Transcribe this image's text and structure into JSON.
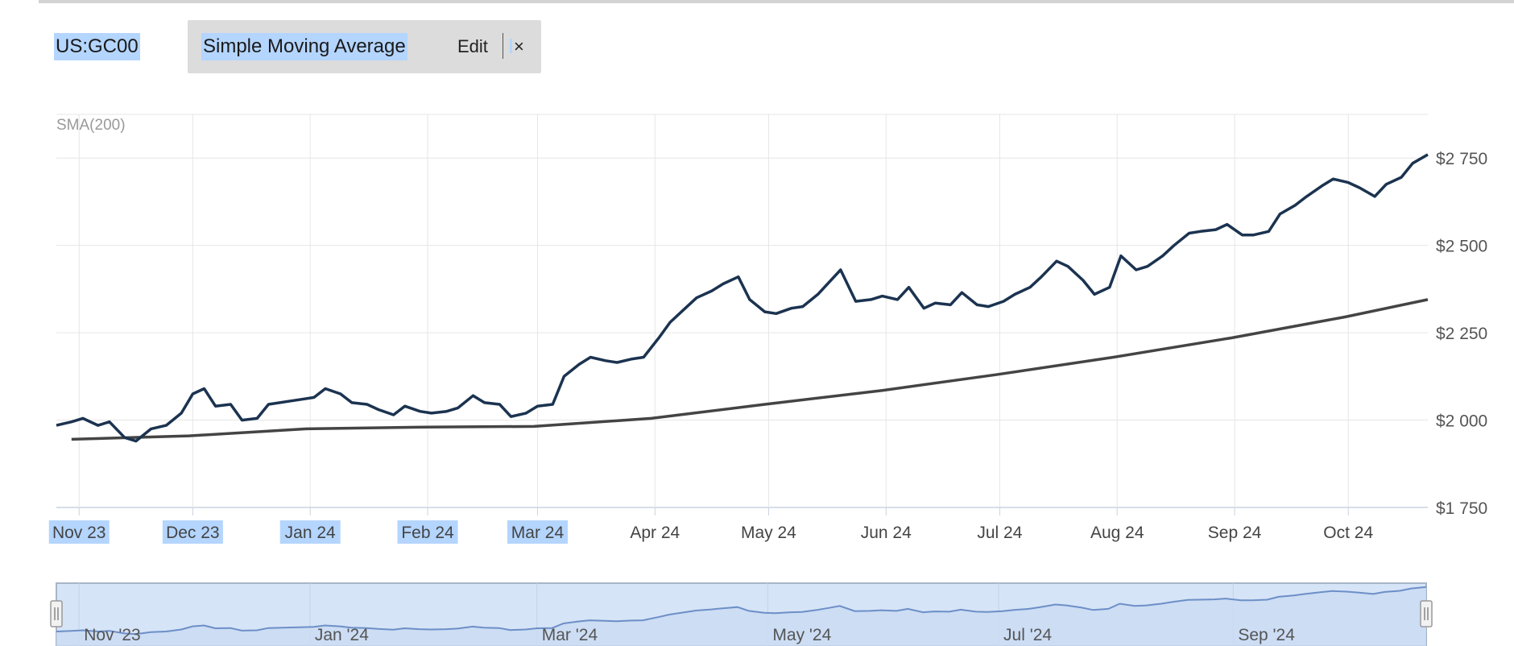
{
  "header": {
    "symbol": "US:GC00",
    "indicator_name": "Simple Moving Average",
    "edit_label": "Edit",
    "close_label": "×"
  },
  "colors": {
    "price_line": "#1b3350",
    "sma_line": "#444444",
    "grid": "#e6e6e6",
    "axis_text": "#555555",
    "navigator_fill": "#d6e4f7",
    "navigator_line": "#6d8fc7",
    "selection_highlight": "#b4d5fe"
  },
  "chart_data": {
    "type": "line",
    "title": "",
    "indicator_label": "SMA(200)",
    "xlabel": "",
    "ylabel": "",
    "x_range": [
      "2023-10-26",
      "2024-10-22"
    ],
    "ylim": [
      1750,
      2875
    ],
    "y_ticks": [
      {
        "value": 1750,
        "label": "$1 750"
      },
      {
        "value": 2000,
        "label": "$2 000"
      },
      {
        "value": 2250,
        "label": "$2 250"
      },
      {
        "value": 2500,
        "label": "$2 500"
      },
      {
        "value": 2750,
        "label": "$2 750"
      }
    ],
    "x_ticks": [
      {
        "date": "2023-11-01",
        "label": "Nov 23"
      },
      {
        "date": "2023-12-01",
        "label": "Dec 23"
      },
      {
        "date": "2024-01-01",
        "label": "Jan 24"
      },
      {
        "date": "2024-02-01",
        "label": "Feb 24"
      },
      {
        "date": "2024-03-01",
        "label": "Mar 24"
      },
      {
        "date": "2024-04-01",
        "label": "Apr 24"
      },
      {
        "date": "2024-05-01",
        "label": "May 24"
      },
      {
        "date": "2024-06-01",
        "label": "Jun 24"
      },
      {
        "date": "2024-07-01",
        "label": "Jul 24"
      },
      {
        "date": "2024-08-01",
        "label": "Aug 24"
      },
      {
        "date": "2024-09-01",
        "label": "Sep 24"
      },
      {
        "date": "2024-10-01",
        "label": "Oct 24"
      }
    ],
    "highlighted_x_ticks": [
      "Nov 23",
      "Dec 23",
      "Jan 24",
      "Feb 24",
      "Mar 24"
    ],
    "grid": true,
    "series": [
      {
        "values": [
          [
            "2023-10-26",
            1985
          ],
          [
            "2023-10-30",
            1995
          ],
          [
            "2023-11-02",
            2005
          ],
          [
            "2023-11-06",
            1985
          ],
          [
            "2023-11-09",
            1995
          ],
          [
            "2023-11-13",
            1950
          ],
          [
            "2023-11-16",
            1940
          ],
          [
            "2023-11-20",
            1975
          ],
          [
            "2023-11-24",
            1985
          ],
          [
            "2023-11-28",
            2020
          ],
          [
            "2023-12-01",
            2075
          ],
          [
            "2023-12-04",
            2090
          ],
          [
            "2023-12-07",
            2040
          ],
          [
            "2023-12-11",
            2045
          ],
          [
            "2023-12-14",
            2000
          ],
          [
            "2023-12-18",
            2005
          ],
          [
            "2023-12-21",
            2045
          ],
          [
            "2023-12-27",
            2055
          ],
          [
            "2024-01-02",
            2065
          ],
          [
            "2024-01-05",
            2090
          ],
          [
            "2024-01-09",
            2075
          ],
          [
            "2024-01-12",
            2050
          ],
          [
            "2024-01-16",
            2045
          ],
          [
            "2024-01-19",
            2030
          ],
          [
            "2024-01-23",
            2015
          ],
          [
            "2024-01-26",
            2040
          ],
          [
            "2024-01-30",
            2025
          ],
          [
            "2024-02-02",
            2020
          ],
          [
            "2024-02-06",
            2025
          ],
          [
            "2024-02-09",
            2035
          ],
          [
            "2024-02-13",
            2070
          ],
          [
            "2024-02-16",
            2050
          ],
          [
            "2024-02-20",
            2045
          ],
          [
            "2024-02-23",
            2010
          ],
          [
            "2024-02-27",
            2020
          ],
          [
            "2024-03-01",
            2040
          ],
          [
            "2024-03-05",
            2045
          ],
          [
            "2024-03-08",
            2125
          ],
          [
            "2024-03-12",
            2160
          ],
          [
            "2024-03-15",
            2180
          ],
          [
            "2024-03-19",
            2170
          ],
          [
            "2024-03-22",
            2165
          ],
          [
            "2024-03-26",
            2175
          ],
          [
            "2024-03-29",
            2180
          ],
          [
            "2024-04-02",
            2235
          ],
          [
            "2024-04-05",
            2280
          ],
          [
            "2024-04-09",
            2320
          ],
          [
            "2024-04-12",
            2350
          ],
          [
            "2024-04-16",
            2370
          ],
          [
            "2024-04-19",
            2390
          ],
          [
            "2024-04-23",
            2410
          ],
          [
            "2024-04-26",
            2345
          ],
          [
            "2024-04-30",
            2310
          ],
          [
            "2024-05-03",
            2305
          ],
          [
            "2024-05-07",
            2320
          ],
          [
            "2024-05-10",
            2325
          ],
          [
            "2024-05-14",
            2360
          ],
          [
            "2024-05-17",
            2395
          ],
          [
            "2024-05-20",
            2430
          ],
          [
            "2024-05-24",
            2340
          ],
          [
            "2024-05-28",
            2345
          ],
          [
            "2024-05-31",
            2355
          ],
          [
            "2024-06-04",
            2345
          ],
          [
            "2024-06-07",
            2380
          ],
          [
            "2024-06-11",
            2320
          ],
          [
            "2024-06-14",
            2335
          ],
          [
            "2024-06-18",
            2330
          ],
          [
            "2024-06-21",
            2365
          ],
          [
            "2024-06-25",
            2330
          ],
          [
            "2024-06-28",
            2325
          ],
          [
            "2024-07-02",
            2340
          ],
          [
            "2024-07-05",
            2360
          ],
          [
            "2024-07-09",
            2380
          ],
          [
            "2024-07-12",
            2410
          ],
          [
            "2024-07-16",
            2455
          ],
          [
            "2024-07-19",
            2440
          ],
          [
            "2024-07-23",
            2400
          ],
          [
            "2024-07-26",
            2360
          ],
          [
            "2024-07-30",
            2380
          ],
          [
            "2024-08-02",
            2470
          ],
          [
            "2024-08-06",
            2430
          ],
          [
            "2024-08-09",
            2440
          ],
          [
            "2024-08-13",
            2470
          ],
          [
            "2024-08-16",
            2500
          ],
          [
            "2024-08-20",
            2535
          ],
          [
            "2024-08-23",
            2540
          ],
          [
            "2024-08-27",
            2545
          ],
          [
            "2024-08-30",
            2560
          ],
          [
            "2024-09-03",
            2530
          ],
          [
            "2024-09-06",
            2530
          ],
          [
            "2024-09-10",
            2540
          ],
          [
            "2024-09-13",
            2590
          ],
          [
            "2024-09-17",
            2615
          ],
          [
            "2024-09-20",
            2640
          ],
          [
            "2024-09-24",
            2670
          ],
          [
            "2024-09-27",
            2690
          ],
          [
            "2024-10-01",
            2680
          ],
          [
            "2024-10-04",
            2665
          ],
          [
            "2024-10-08",
            2640
          ],
          [
            "2024-10-11",
            2675
          ],
          [
            "2024-10-15",
            2695
          ],
          [
            "2024-10-18",
            2735
          ],
          [
            "2024-10-22",
            2760
          ]
        ]
      },
      {
        "values": [
          [
            "2023-10-30",
            1945
          ],
          [
            "2023-11-30",
            1955
          ],
          [
            "2023-12-31",
            1975
          ],
          [
            "2024-01-31",
            1980
          ],
          [
            "2024-02-29",
            1982
          ],
          [
            "2024-03-31",
            2005
          ],
          [
            "2024-04-30",
            2045
          ],
          [
            "2024-05-31",
            2085
          ],
          [
            "2024-06-30",
            2130
          ],
          [
            "2024-07-31",
            2180
          ],
          [
            "2024-08-31",
            2235
          ],
          [
            "2024-09-30",
            2295
          ],
          [
            "2024-10-22",
            2345
          ]
        ]
      }
    ],
    "navigator": {
      "x_ticks": [
        {
          "date": "2023-11-01",
          "label": "Nov '23"
        },
        {
          "date": "2024-01-01",
          "label": "Jan '24"
        },
        {
          "date": "2024-03-01",
          "label": "Mar '24"
        },
        {
          "date": "2024-05-01",
          "label": "May '24"
        },
        {
          "date": "2024-07-01",
          "label": "Jul '24"
        },
        {
          "date": "2024-09-01",
          "label": "Sep '24"
        }
      ]
    }
  }
}
